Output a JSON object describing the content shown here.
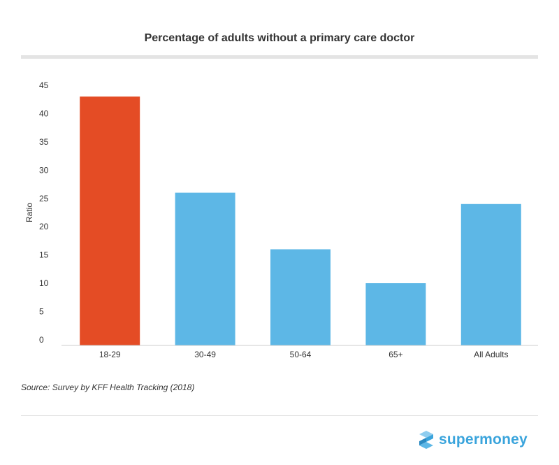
{
  "chart_data": {
    "type": "bar",
    "title": "Percentage of adults without a primary care doctor",
    "xlabel": "",
    "ylabel": "Ratio",
    "categories": [
      "18-29",
      "30-49",
      "50-64",
      "65+",
      "All Adults"
    ],
    "values": [
      44,
      27,
      17,
      11,
      25
    ],
    "bar_colors": [
      "#e44c25",
      "#5db7e6",
      "#5db7e6",
      "#5db7e6",
      "#5db7e6"
    ],
    "ylim": [
      0,
      45
    ],
    "yticks": [
      0,
      5,
      10,
      15,
      20,
      25,
      30,
      35,
      40,
      45
    ],
    "grid": false
  },
  "source": "Source: Survey by KFF Health Tracking (2018)",
  "brand": {
    "name": "supermoney",
    "color": "#3aa4dc"
  }
}
